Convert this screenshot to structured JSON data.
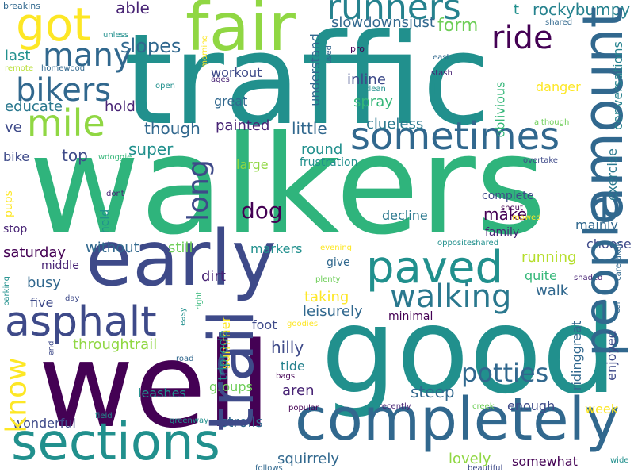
{
  "palette": {
    "teal": "#21908d",
    "green": "#35b779",
    "blue": "#31688e",
    "indigo": "#3e4a89",
    "purple": "#440154",
    "deep": "#482475",
    "lime": "#90d743",
    "yellow": "#fde725"
  },
  "words": [
    {
      "text": "traffic",
      "color": "#21908d",
      "vertical": false
    },
    {
      "text": "walkers",
      "color": "#2fb47c",
      "vertical": false
    },
    {
      "text": "good",
      "color": "#21908d",
      "vertical": false
    },
    {
      "text": "well",
      "color": "#440154",
      "vertical": false
    },
    {
      "text": "early",
      "color": "#3e4a89",
      "vertical": false
    },
    {
      "text": "completely",
      "color": "#31688e",
      "vertical": false
    },
    {
      "text": "sections",
      "color": "#21908d",
      "vertical": false
    },
    {
      "text": "fair",
      "color": "#90d743",
      "vertical": false
    },
    {
      "text": "amount",
      "color": "#31688e",
      "vertical": true
    },
    {
      "text": "people",
      "color": "#31688e",
      "vertical": true
    },
    {
      "text": "paved",
      "color": "#21908d",
      "vertical": false
    },
    {
      "text": "asphalt",
      "color": "#3e4a89",
      "vertical": false
    },
    {
      "text": "trail",
      "color": "#3e4a89",
      "vertical": true
    },
    {
      "text": "got",
      "color": "#fde725",
      "vertical": false
    },
    {
      "text": "runners",
      "color": "#26828e",
      "vertical": false
    },
    {
      "text": "sometimes",
      "color": "#31688e",
      "vertical": false
    },
    {
      "text": "many",
      "color": "#31688e",
      "vertical": false
    },
    {
      "text": "mile",
      "color": "#90d743",
      "vertical": false
    },
    {
      "text": "bikers",
      "color": "#31688e",
      "vertical": false
    },
    {
      "text": "ride",
      "color": "#440154",
      "vertical": false
    },
    {
      "text": "walking",
      "color": "#2a788e",
      "vertical": false
    },
    {
      "text": "long",
      "color": "#3e4a89",
      "vertical": true
    },
    {
      "text": "dog",
      "color": "#440154",
      "vertical": false
    },
    {
      "text": "know",
      "color": "#fde725",
      "vertical": true
    },
    {
      "text": "potties",
      "color": "#31688e",
      "vertical": false
    },
    {
      "text": "rockybumpy",
      "color": "#26828e",
      "vertical": false
    },
    {
      "text": "able",
      "color": "#482475",
      "vertical": false
    },
    {
      "text": "slopes",
      "color": "#31688e",
      "vertical": false
    },
    {
      "text": "slowdownsjust",
      "color": "#31688e",
      "vertical": false
    },
    {
      "text": "form",
      "color": "#6ece58",
      "vertical": false
    },
    {
      "text": "workout",
      "color": "#3e4a89",
      "vertical": false
    },
    {
      "text": "last",
      "color": "#21908d",
      "vertical": false
    },
    {
      "text": "educate",
      "color": "#2a788e",
      "vertical": false
    },
    {
      "text": "hold",
      "color": "#482475",
      "vertical": false
    },
    {
      "text": "though",
      "color": "#31688e",
      "vertical": false
    },
    {
      "text": "painted",
      "color": "#482475",
      "vertical": false
    },
    {
      "text": "little",
      "color": "#31688e",
      "vertical": false
    },
    {
      "text": "clueless",
      "color": "#2a788e",
      "vertical": false
    },
    {
      "text": "inline",
      "color": "#3e4a89",
      "vertical": false
    },
    {
      "text": "spray",
      "color": "#35b779",
      "vertical": false
    },
    {
      "text": "great",
      "color": "#31688e",
      "vertical": false
    },
    {
      "text": "super",
      "color": "#21908d",
      "vertical": false
    },
    {
      "text": "top",
      "color": "#3e4a89",
      "vertical": false
    },
    {
      "text": "bike",
      "color": "#3e4a89",
      "vertical": false
    },
    {
      "text": "ve",
      "color": "#3e4a89",
      "vertical": false
    },
    {
      "text": "round",
      "color": "#21908d",
      "vertical": false
    },
    {
      "text": "frustration",
      "color": "#21908d",
      "vertical": false
    },
    {
      "text": "large",
      "color": "#90d743",
      "vertical": false
    },
    {
      "text": "complete",
      "color": "#3e4a89",
      "vertical": false
    },
    {
      "text": "decline",
      "color": "#2a788e",
      "vertical": false
    },
    {
      "text": "make",
      "color": "#440154",
      "vertical": false
    },
    {
      "text": "family",
      "color": "#482475",
      "vertical": false
    },
    {
      "text": "mainly",
      "color": "#31688e",
      "vertical": false
    },
    {
      "text": "danger",
      "color": "#fde725",
      "vertical": false
    },
    {
      "text": "ll",
      "color": "#21908d",
      "vertical": false
    },
    {
      "text": "t",
      "color": "#21908d",
      "vertical": false
    },
    {
      "text": "stop",
      "color": "#482475",
      "vertical": false
    },
    {
      "text": "saturday",
      "color": "#440154",
      "vertical": false
    },
    {
      "text": "middle",
      "color": "#482475",
      "vertical": false
    },
    {
      "text": "without",
      "color": "#31688e",
      "vertical": false
    },
    {
      "text": "still",
      "color": "#6ece58",
      "vertical": false
    },
    {
      "text": "markers",
      "color": "#21908d",
      "vertical": false
    },
    {
      "text": "busy",
      "color": "#31688e",
      "vertical": false
    },
    {
      "text": "five",
      "color": "#3e4a89",
      "vertical": false
    },
    {
      "text": "dirt",
      "color": "#482475",
      "vertical": false
    },
    {
      "text": "give",
      "color": "#31688e",
      "vertical": false
    },
    {
      "text": "running",
      "color": "#b5de2b",
      "vertical": false
    },
    {
      "text": "quite",
      "color": "#35b779",
      "vertical": false
    },
    {
      "text": "choose",
      "color": "#3e4a89",
      "vertical": false
    },
    {
      "text": "walk",
      "color": "#31688e",
      "vertical": false
    },
    {
      "text": "taking",
      "color": "#fde725",
      "vertical": false
    },
    {
      "text": "leisurely",
      "color": "#31688e",
      "vertical": false
    },
    {
      "text": "minimal",
      "color": "#440154",
      "vertical": false
    },
    {
      "text": "foot",
      "color": "#3e4a89",
      "vertical": false
    },
    {
      "text": "throughtrail",
      "color": "#90d743",
      "vertical": false
    },
    {
      "text": "hilly",
      "color": "#3e4a89",
      "vertical": false
    },
    {
      "text": "tide",
      "color": "#26828e",
      "vertical": false
    },
    {
      "text": "aren",
      "color": "#482475",
      "vertical": false
    },
    {
      "text": "steep",
      "color": "#31688e",
      "vertical": false
    },
    {
      "text": "leashes",
      "color": "#21908d",
      "vertical": false
    },
    {
      "text": "groups",
      "color": "#6ece58",
      "vertical": false
    },
    {
      "text": "enough",
      "color": "#3e4a89",
      "vertical": false
    },
    {
      "text": "week",
      "color": "#fde725",
      "vertical": false
    },
    {
      "text": "wonderful",
      "color": "#3e4a89",
      "vertical": false
    },
    {
      "text": "strolls",
      "color": "#31688e",
      "vertical": false
    },
    {
      "text": "squirrely",
      "color": "#31688e",
      "vertical": false
    },
    {
      "text": "lovely",
      "color": "#90d743",
      "vertical": false
    },
    {
      "text": "somewhat",
      "color": "#440154",
      "vertical": false
    },
    {
      "text": "breakins",
      "color": "#31688e",
      "vertical": false
    },
    {
      "text": "unless",
      "color": "#21908d",
      "vertical": false
    },
    {
      "text": "remote",
      "color": "#b5de2b",
      "vertical": false
    },
    {
      "text": "homewood",
      "color": "#31688e",
      "vertical": false
    },
    {
      "text": "pro",
      "color": "#440154",
      "vertical": false
    },
    {
      "text": "east",
      "color": "#31688e",
      "vertical": false
    },
    {
      "text": "stash",
      "color": "#482475",
      "vertical": false
    },
    {
      "text": "shared",
      "color": "#31688e",
      "vertical": false
    },
    {
      "text": "clean",
      "color": "#21908d",
      "vertical": false
    },
    {
      "text": "open",
      "color": "#21908d",
      "vertical": false
    },
    {
      "text": "ages",
      "color": "#482475",
      "vertical": false
    },
    {
      "text": "although",
      "color": "#6ece58",
      "vertical": false
    },
    {
      "text": "wdoggie",
      "color": "#35b779",
      "vertical": false
    },
    {
      "text": "overtake",
      "color": "#3e4a89",
      "vertical": false
    },
    {
      "text": "dont",
      "color": "#482475",
      "vertical": false
    },
    {
      "text": "shout",
      "color": "#440154",
      "vertical": false
    },
    {
      "text": "mowed",
      "color": "#fde725",
      "vertical": false
    },
    {
      "text": "oppositeshared",
      "color": "#21908d",
      "vertical": false
    },
    {
      "text": "evening",
      "color": "#fde725",
      "vertical": false
    },
    {
      "text": "plenty",
      "color": "#6ece58",
      "vertical": false
    },
    {
      "text": "shaded",
      "color": "#482475",
      "vertical": false
    },
    {
      "text": "day",
      "color": "#3e4a89",
      "vertical": false
    },
    {
      "text": "goodies",
      "color": "#fde725",
      "vertical": false
    },
    {
      "text": "road",
      "color": "#31688e",
      "vertical": false
    },
    {
      "text": "bags",
      "color": "#440154",
      "vertical": false
    },
    {
      "text": "field",
      "color": "#21908d",
      "vertical": false
    },
    {
      "text": "greenway",
      "color": "#21908d",
      "vertical": false
    },
    {
      "text": "popular",
      "color": "#440154",
      "vertical": false
    },
    {
      "text": "recently",
      "color": "#482475",
      "vertical": false
    },
    {
      "text": "creek",
      "color": "#6ece58",
      "vertical": false
    },
    {
      "text": "follows",
      "color": "#31688e",
      "vertical": false
    },
    {
      "text": "beautiful",
      "color": "#3e4a89",
      "vertical": false
    },
    {
      "text": "wide",
      "color": "#21908d",
      "vertical": false
    },
    {
      "text": "morning",
      "color": "#fde725",
      "vertical": true
    },
    {
      "text": "screened",
      "color": "#21908d",
      "vertical": true
    },
    {
      "text": "used",
      "color": "#31688e",
      "vertical": true
    },
    {
      "text": "understand",
      "color": "#31688e",
      "vertical": true
    },
    {
      "text": "oblivious",
      "color": "#35b779",
      "vertical": true
    },
    {
      "text": "conversations",
      "color": "#26828e",
      "vertical": true
    },
    {
      "text": "exercise",
      "color": "#2a788e",
      "vertical": true
    },
    {
      "text": "caretaken",
      "color": "#31688e",
      "vertical": true
    },
    {
      "text": "pups",
      "color": "#fde725",
      "vertical": true
    },
    {
      "text": "held",
      "color": "#21908d",
      "vertical": true
    },
    {
      "text": "summer",
      "color": "#fde725",
      "vertical": true
    },
    {
      "text": "triprode",
      "color": "#21908d",
      "vertical": true
    },
    {
      "text": "ridinggreat",
      "color": "#31688e",
      "vertical": true
    },
    {
      "text": "enjoyed",
      "color": "#3e4a89",
      "vertical": true
    },
    {
      "text": "parking",
      "color": "#21908d",
      "vertical": true
    },
    {
      "text": "easy",
      "color": "#21908d",
      "vertical": true
    },
    {
      "text": "right",
      "color": "#35b779",
      "vertical": true
    },
    {
      "text": "car",
      "color": "#31688e",
      "vertical": true
    },
    {
      "text": "end",
      "color": "#3e4a89",
      "vertical": true
    }
  ]
}
